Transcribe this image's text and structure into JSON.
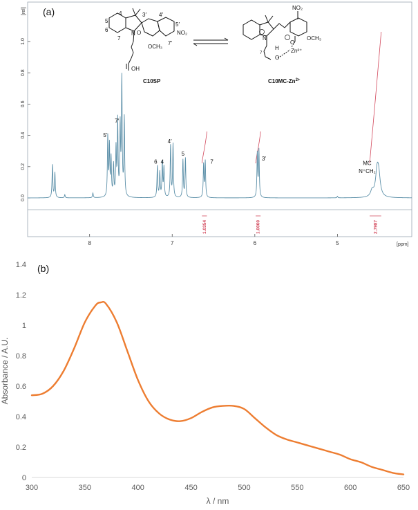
{
  "figure": {
    "panel_a_label": "(a)",
    "panel_b_label": "(b)"
  },
  "chart_data": [
    {
      "type": "line",
      "panel": "(a)",
      "ylabel_unit": "[rel]",
      "xlabel_unit": "[ppm]",
      "x_reversed": true,
      "xlim": [
        8.75,
        4.1
      ],
      "ylim": [
        -0.18,
        1.2
      ],
      "xticks": [
        "8",
        "7",
        "6",
        "5"
      ],
      "yticks": [
        "1.0",
        "0.8",
        "0.6",
        "0.4",
        "0.2",
        "0.0"
      ],
      "line_color": "#5b8fa8",
      "integral_color": "#d2465a",
      "spectrum": {
        "baseline": 0.0,
        "peaks": [
          {
            "x": 8.45,
            "h": 0.21
          },
          {
            "x": 8.42,
            "h": 0.16
          },
          {
            "x": 8.3,
            "h": 0.02
          },
          {
            "x": 7.96,
            "h": 0.03
          },
          {
            "x": 7.78,
            "h": 0.38
          },
          {
            "x": 7.76,
            "h": 0.32
          },
          {
            "x": 7.74,
            "h": 0.24
          },
          {
            "x": 7.71,
            "h": 0.2
          },
          {
            "x": 7.68,
            "h": 0.3
          },
          {
            "x": 7.66,
            "h": 0.48
          },
          {
            "x": 7.63,
            "h": 0.44
          },
          {
            "x": 7.61,
            "h": 0.75
          },
          {
            "x": 7.58,
            "h": 0.5
          },
          {
            "x": 7.18,
            "h": 0.2
          },
          {
            "x": 7.15,
            "h": 0.16
          },
          {
            "x": 7.12,
            "h": 0.22
          },
          {
            "x": 7.1,
            "h": 0.19
          },
          {
            "x": 7.02,
            "h": 0.33
          },
          {
            "x": 6.99,
            "h": 0.34
          },
          {
            "x": 6.87,
            "h": 0.24
          },
          {
            "x": 6.84,
            "h": 0.25
          },
          {
            "x": 6.62,
            "h": 0.21
          },
          {
            "x": 6.6,
            "h": 0.23
          },
          {
            "x": 5.97,
            "h": 0.28
          },
          {
            "x": 5.95,
            "h": 0.3
          },
          {
            "x": 5.0,
            "h": 0.01
          },
          {
            "x": 4.58,
            "h": 0.04
          },
          {
            "x": 4.52,
            "h": 0.15
          },
          {
            "x": 4.5,
            "h": 0.12
          }
        ]
      },
      "peak_labels": [
        {
          "text": "5′",
          "x": 7.81,
          "y": 0.39
        },
        {
          "text": "7′",
          "x": 7.67,
          "y": 0.48
        },
        {
          "text": "6",
          "x": 7.2,
          "y": 0.22
        },
        {
          "text": "4",
          "x": 7.12,
          "y": 0.22
        },
        {
          "text": "4′",
          "x": 7.03,
          "y": 0.35
        },
        {
          "text": "5",
          "x": 6.87,
          "y": 0.27
        },
        {
          "text": "7",
          "x": 6.52,
          "y": 0.22
        },
        {
          "text": "3′",
          "x": 5.89,
          "y": 0.24
        },
        {
          "text": "MC",
          "x": 4.64,
          "y": 0.21
        },
        {
          "text": "N⁺CH₂",
          "x": 4.64,
          "y": 0.16
        }
      ],
      "integrals": [
        {
          "x_from": 6.64,
          "x_to": 6.58,
          "label": "1.0354"
        },
        {
          "x_from": 5.99,
          "x_to": 5.93,
          "label": "1.0000"
        },
        {
          "x_from": 4.61,
          "x_to": 4.47,
          "label": "2.7987"
        }
      ],
      "inset_labels": {
        "sp_name": "C10SP",
        "mc_name": "C10MC-Zn",
        "mc_superscript": "2+",
        "sp_atoms": [
          "4",
          "3′",
          "4′",
          "5′",
          "5",
          "6",
          "7",
          "7′"
        ],
        "sp_nitro": "NO₂",
        "sp_methoxy": "OCH₃",
        "sp_acid": "OH",
        "sp_n": "N",
        "sp_o": "O",
        "mc_nitro": "NO₂",
        "mc_methoxy": "OCH₃",
        "mc_zn": "Zn²⁺",
        "mc_h": "H",
        "mc_n": "N",
        "mc_o": "O",
        "mc_chain": "7"
      }
    },
    {
      "type": "line",
      "panel": "(b)",
      "xlabel": "λ / nm",
      "ylabel": "Absorbance / A.U.",
      "xlim": [
        300,
        650
      ],
      "ylim": [
        0,
        1.4
      ],
      "xticks": [
        300,
        350,
        400,
        450,
        500,
        550,
        600,
        650
      ],
      "yticks": [
        0,
        0.2,
        0.4,
        0.6,
        0.8,
        1,
        1.2,
        1.4
      ],
      "ytick_labels": [
        "0",
        "0.2",
        "0.4",
        "0.6",
        "0.8",
        "1",
        "1.2",
        "1.4"
      ],
      "grid": false,
      "color": "#ed7d31",
      "x": [
        300,
        310,
        320,
        330,
        340,
        350,
        360,
        365,
        370,
        380,
        390,
        400,
        410,
        420,
        430,
        440,
        450,
        460,
        470,
        480,
        490,
        500,
        510,
        520,
        530,
        540,
        550,
        560,
        570,
        580,
        590,
        600,
        610,
        620,
        630,
        640,
        650
      ],
      "y": [
        0.54,
        0.55,
        0.6,
        0.7,
        0.85,
        1.02,
        1.13,
        1.15,
        1.14,
        1.02,
        0.83,
        0.64,
        0.5,
        0.42,
        0.38,
        0.37,
        0.39,
        0.43,
        0.46,
        0.47,
        0.47,
        0.45,
        0.39,
        0.33,
        0.28,
        0.25,
        0.23,
        0.21,
        0.19,
        0.17,
        0.15,
        0.12,
        0.1,
        0.07,
        0.05,
        0.03,
        0.02
      ]
    }
  ]
}
